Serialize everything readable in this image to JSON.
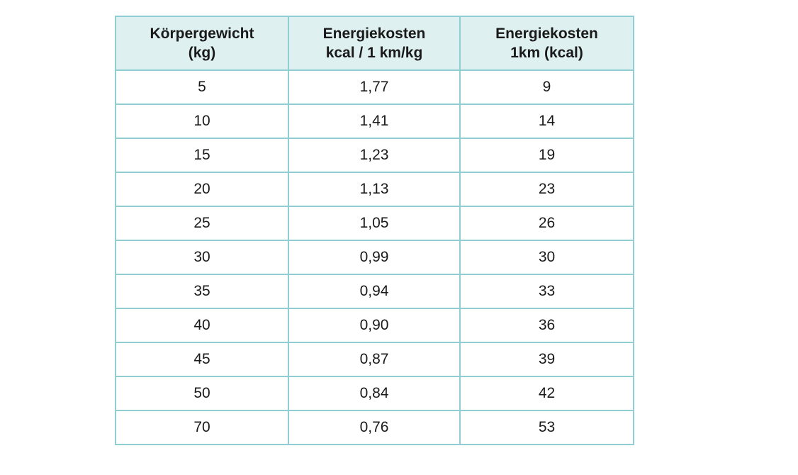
{
  "table": {
    "headers": [
      [
        "Körpergewicht",
        "(kg)"
      ],
      [
        "Energiekosten",
        "kcal / 1 km/kg"
      ],
      [
        "Energiekosten",
        "1km (kcal)"
      ]
    ],
    "rows": [
      [
        "5",
        "1,77",
        "9"
      ],
      [
        "10",
        "1,41",
        "14"
      ],
      [
        "15",
        "1,23",
        "19"
      ],
      [
        "20",
        "1,13",
        "23"
      ],
      [
        "25",
        "1,05",
        "26"
      ],
      [
        "30",
        "0,99",
        "30"
      ],
      [
        "35",
        "0,94",
        "33"
      ],
      [
        "40",
        "0,90",
        "36"
      ],
      [
        "45",
        "0,87",
        "39"
      ],
      [
        "50",
        "0,84",
        "42"
      ],
      [
        "70",
        "0,76",
        "53"
      ]
    ]
  },
  "colors": {
    "border": "#8fcfd3",
    "header_background": "#dff0f0"
  }
}
